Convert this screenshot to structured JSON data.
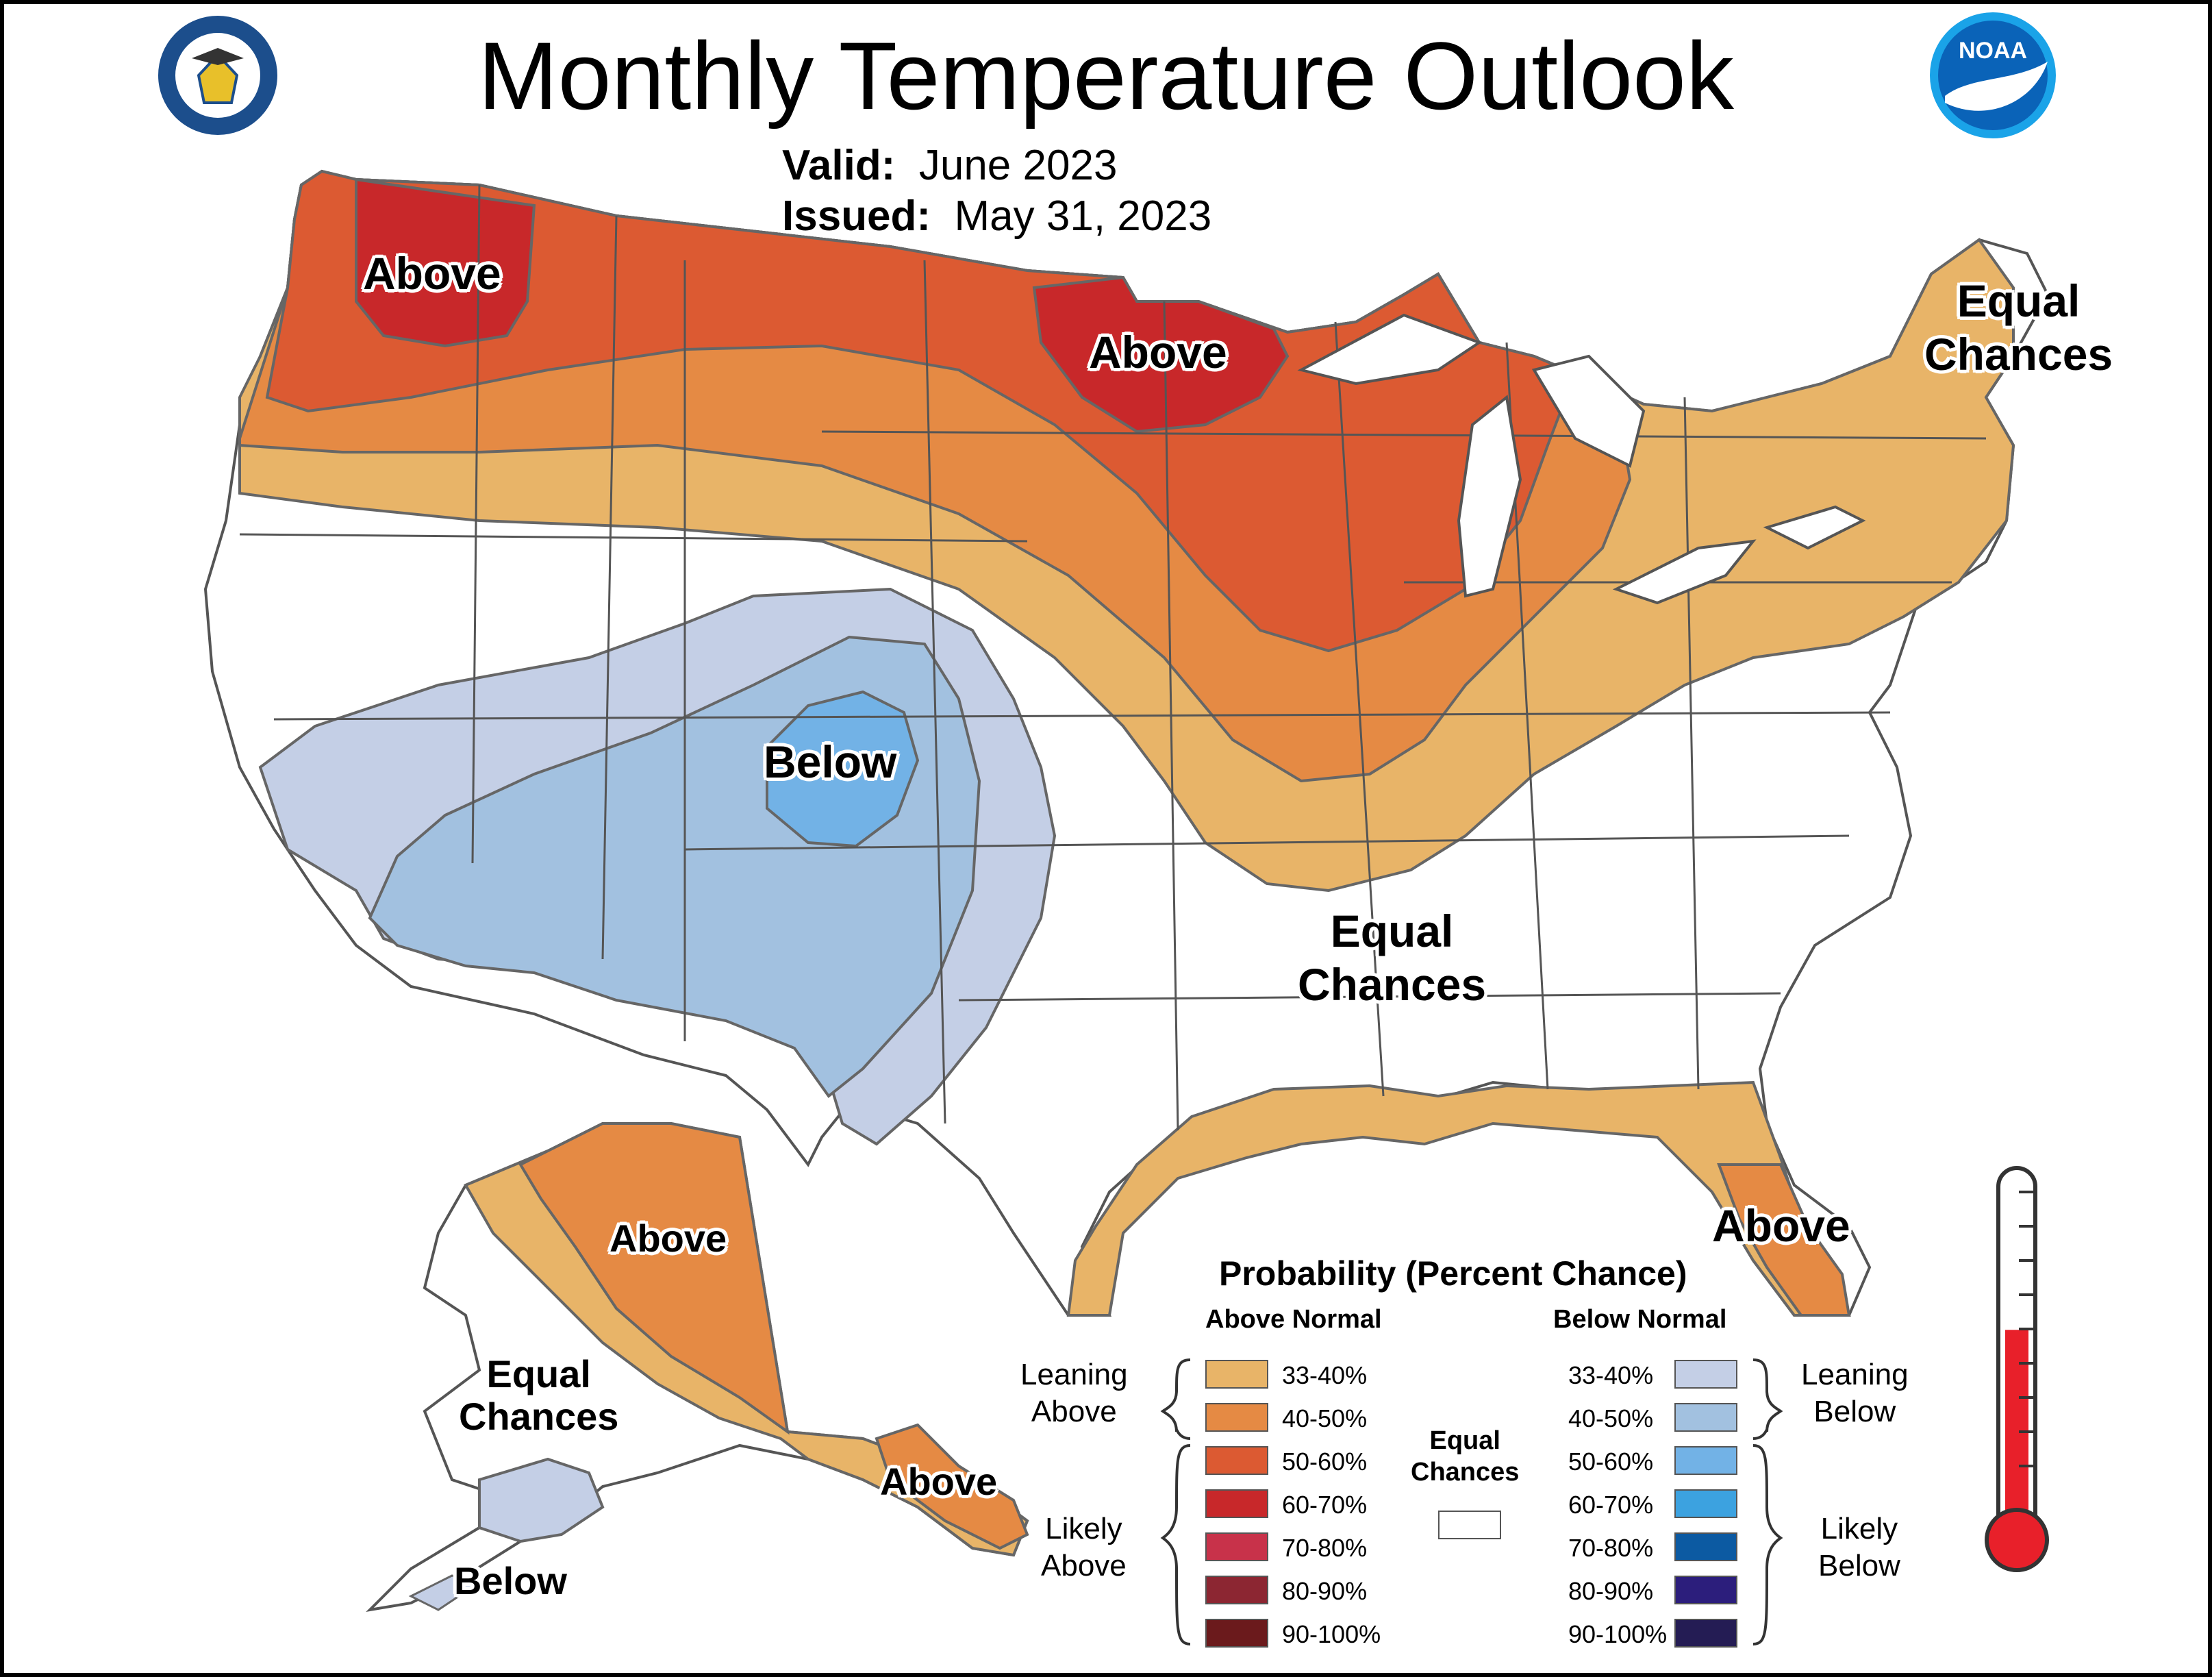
{
  "title": "Monthly Temperature Outlook",
  "valid_label": "Valid:",
  "valid_value": "June 2023",
  "issued_label": "Issued:",
  "issued_value": "May 31, 2023",
  "logos": {
    "left": "department-of-commerce-seal",
    "right": "noaa-logo",
    "noaa_text": "NOAA"
  },
  "map_labels": {
    "above_northwest": "Above",
    "above_north_central": "Above",
    "below_southwest": "Below",
    "equal_northeast": [
      "Equal",
      "Chances"
    ],
    "equal_south": [
      "Equal",
      "Chances"
    ],
    "above_florida": "Above",
    "above_alaska": "Above",
    "above_alaska_southeast": "Above",
    "equal_alaska": [
      "Equal",
      "Chances"
    ],
    "below_alaska": "Below"
  },
  "legend": {
    "title": "Probability (Percent Chance)",
    "above_header": "Above Normal",
    "below_header": "Below Normal",
    "leaning_above": [
      "Leaning",
      "Above"
    ],
    "likely_above": [
      "Likely",
      "Above"
    ],
    "leaning_below": [
      "Leaning",
      "Below"
    ],
    "likely_below": [
      "Likely",
      "Below"
    ],
    "equal": [
      "Equal",
      "Chances"
    ],
    "ranges": [
      "33-40%",
      "40-50%",
      "50-60%",
      "60-70%",
      "70-80%",
      "80-90%",
      "90-100%"
    ],
    "above_colors": [
      "#E8B468",
      "#E58A44",
      "#DC5A32",
      "#C8282A",
      "#C8324A",
      "#8C2632",
      "#6B1A1C"
    ],
    "below_colors": [
      "#C4CFE6",
      "#A2C1E0",
      "#72B2E6",
      "#3CA2E0",
      "#0C5AA2",
      "#2C1E7C",
      "#241C54"
    ],
    "equal_color": "#FFFFFF"
  },
  "thermometer": {
    "fill_fraction": 0.55,
    "color": "#E8202A"
  }
}
